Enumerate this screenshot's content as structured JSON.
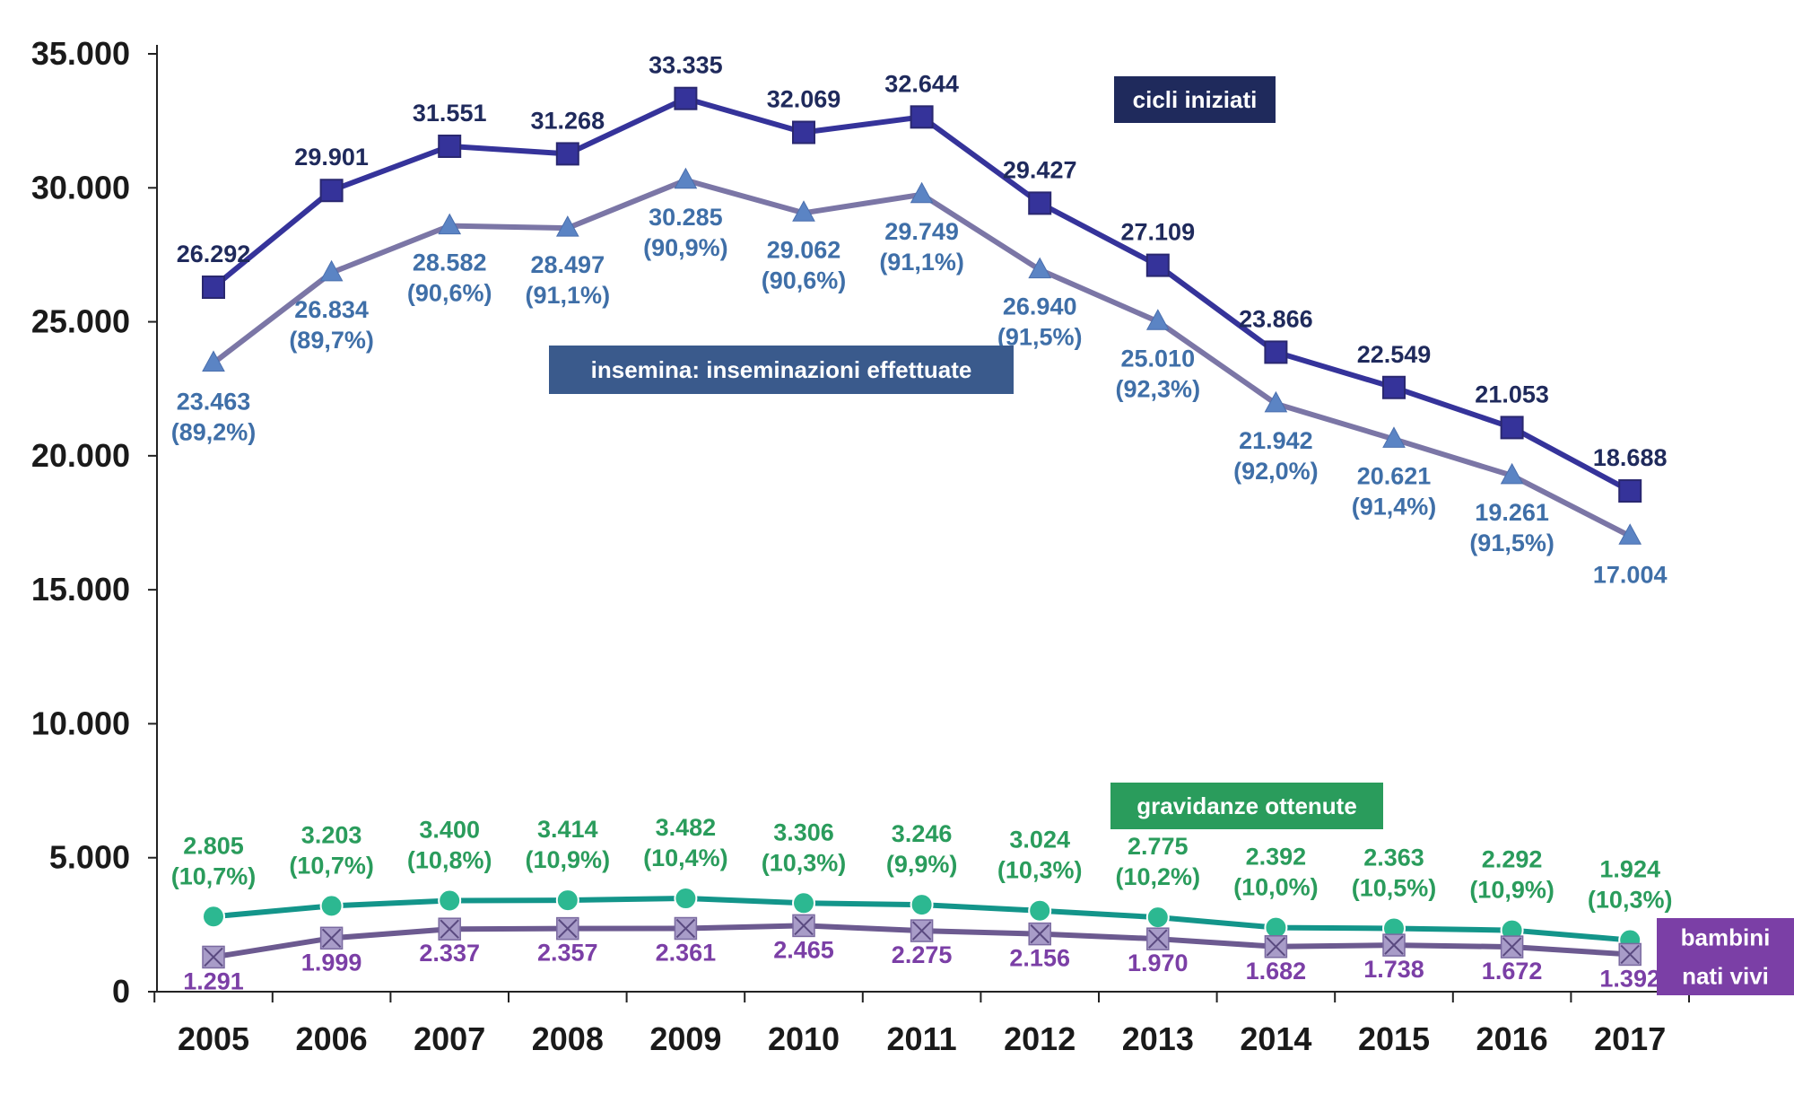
{
  "chart_data": {
    "type": "line",
    "categories": [
      "2005",
      "2006",
      "2007",
      "2008",
      "2009",
      "2010",
      "2011",
      "2012",
      "2013",
      "2014",
      "2015",
      "2016",
      "2017"
    ],
    "ylim": [
      0,
      35000
    ],
    "y_ticks": [
      0,
      5000,
      10000,
      15000,
      20000,
      25000,
      30000,
      35000
    ],
    "y_tick_labels": [
      "0",
      "5.000",
      "10.000",
      "15.000",
      "20.000",
      "25.000",
      "30.000",
      "35.000"
    ],
    "grid": false,
    "series": [
      {
        "name": "cicli iniziati",
        "color": "#35339a",
        "marker": "square",
        "values": [
          26292,
          29901,
          31551,
          31268,
          33335,
          32069,
          32644,
          29427,
          27109,
          23866,
          22549,
          21053,
          18688
        ],
        "labels": [
          "26.292",
          "29.901",
          "31.551",
          "31.268",
          "33.335",
          "32.069",
          "32.644",
          "29.427",
          "27.109",
          "23.866",
          "22.549",
          "21.053",
          "18.688"
        ],
        "label_color": "#1f2a5c",
        "legend_bg": "#1f2a5c"
      },
      {
        "name": "insemina: inseminazioni effettuate",
        "color": "#7b76a6",
        "marker": "triangle",
        "marker_color": "#5b84c4",
        "values": [
          23463,
          26834,
          28582,
          28497,
          30285,
          29062,
          29749,
          26940,
          25010,
          21942,
          20621,
          19261,
          17004
        ],
        "labels": [
          "23.463",
          "26.834",
          "28.582",
          "28.497",
          "30.285",
          "29.062",
          "29.749",
          "26.940",
          "25.010",
          "21.942",
          "20.621",
          "19.261",
          "17.004"
        ],
        "pct": [
          "(89,2%)",
          "(89,7%)",
          "(90,6%)",
          "(91,1%)",
          "(90,9%)",
          "(90,6%)",
          "(91,1%)",
          "(91,5%)",
          "(92,3%)",
          "(92,0%)",
          "(91,4%)",
          "(91,5%)",
          ""
        ],
        "label_color": "#3f6fa8",
        "legend_bg": "#3a5a8c"
      },
      {
        "name": "gravidanze ottenute",
        "color": "#13958a",
        "marker": "circle",
        "marker_color": "#2cb891",
        "values": [
          2805,
          3203,
          3400,
          3414,
          3482,
          3306,
          3246,
          3024,
          2775,
          2392,
          2363,
          2292,
          1924
        ],
        "labels": [
          "2.805",
          "3.203",
          "3.400",
          "3.414",
          "3.482",
          "3.306",
          "3.246",
          "3.024",
          "2.775",
          "2.392",
          "2.363",
          "2.292",
          "1.924"
        ],
        "pct": [
          "(10,7%)",
          "(10,7%)",
          "(10,8%)",
          "(10,9%)",
          "(10,4%)",
          "(10,3%)",
          "(9,9%)",
          "(10,3%)",
          "(10,2%)",
          "(10,0%)",
          "(10,5%)",
          "(10,9%)",
          "(10,3%)"
        ],
        "label_color": "#2a9c5c",
        "legend_bg": "#2a9c5c"
      },
      {
        "name": "bambini nati vivi",
        "name_lines": [
          "bambini",
          "nati vivi"
        ],
        "color": "#6c5a90",
        "marker": "x-square",
        "marker_color": "#a89cc8",
        "values": [
          1291,
          1999,
          2337,
          2357,
          2361,
          2465,
          2275,
          2156,
          1970,
          1682,
          1738,
          1672,
          1392
        ],
        "labels": [
          "1.291",
          "1.999",
          "2.337",
          "2.357",
          "2.361",
          "2.465",
          "2.275",
          "2.156",
          "1.970",
          "1.682",
          "1.738",
          "1.672",
          "1.392"
        ],
        "label_color": "#7b3fa6",
        "legend_bg": "#7b3fa6"
      }
    ]
  }
}
